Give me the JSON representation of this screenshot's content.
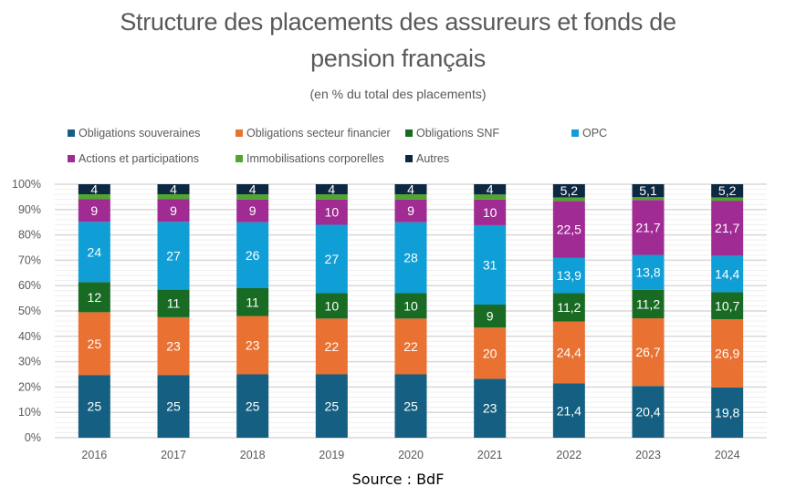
{
  "chart_data": {
    "type": "bar",
    "stacked": true,
    "percent_stacked": true,
    "title": "Structure des placements des assureurs et fonds de pension français",
    "subtitle": "(en % du total des placements)",
    "xlabel": "",
    "ylabel": "",
    "ylim": [
      0,
      100
    ],
    "yticks": [
      "0%",
      "10%",
      "20%",
      "30%",
      "40%",
      "50%",
      "60%",
      "70%",
      "80%",
      "90%",
      "100%"
    ],
    "grid": true,
    "legend_position": "top",
    "categories": [
      "2016",
      "2017",
      "2018",
      "2019",
      "2020",
      "2021",
      "2022",
      "2023",
      "2024"
    ],
    "series": [
      {
        "name": "Obligations souveraines",
        "color": "#156082",
        "values": [
          25,
          25,
          25,
          25,
          25,
          23,
          21.4,
          20.4,
          19.8
        ],
        "labels": [
          "25",
          "25",
          "25",
          "25",
          "25",
          "23",
          "21,4",
          "20,4",
          "19,8"
        ]
      },
      {
        "name": "Obligations secteur financier",
        "color": "#E97132",
        "values": [
          25,
          23,
          23,
          22,
          22,
          20,
          24.4,
          26.7,
          26.9
        ],
        "labels": [
          "25",
          "23",
          "23",
          "22",
          "22",
          "20",
          "24,4",
          "26,7",
          "26,9"
        ]
      },
      {
        "name": "Obligations SNF",
        "color": "#196B24",
        "values": [
          12,
          11,
          11,
          10,
          10,
          9,
          11.2,
          11.2,
          10.7
        ],
        "labels": [
          "12",
          "11",
          "11",
          "10",
          "10",
          "9",
          "11,2",
          "11,2",
          "10,7"
        ]
      },
      {
        "name": "OPC",
        "color": "#0F9ED5",
        "values": [
          24,
          27,
          26,
          27,
          28,
          31,
          13.9,
          13.8,
          14.4
        ],
        "labels": [
          "24",
          "27",
          "26",
          "27",
          "28",
          "31",
          "13,9",
          "13,8",
          "14,4"
        ]
      },
      {
        "name": "Actions et participations",
        "color": "#A02B93",
        "values": [
          9,
          9,
          9,
          10,
          9,
          10,
          22.5,
          21.7,
          21.7
        ],
        "labels": [
          "9",
          "9",
          "9",
          "10",
          "9",
          "10",
          "22,5",
          "21,7",
          "21,7"
        ]
      },
      {
        "name": "Immobilisations corporelles",
        "color": "#4EA72E",
        "values": [
          2,
          2,
          2,
          2,
          2,
          2,
          1.4,
          1.1,
          1.3
        ],
        "labels": [
          "",
          "",
          "",
          "",
          "",
          "",
          "",
          "",
          ""
        ]
      },
      {
        "name": "Autres",
        "color": "#0E2841",
        "values": [
          4,
          4,
          4,
          4,
          4,
          4,
          5.2,
          5.1,
          5.2
        ],
        "labels": [
          "4",
          "4",
          "4",
          "4",
          "4",
          "4",
          "5,2",
          "5,1",
          "5,2"
        ]
      }
    ],
    "source": "Source : BdF"
  }
}
